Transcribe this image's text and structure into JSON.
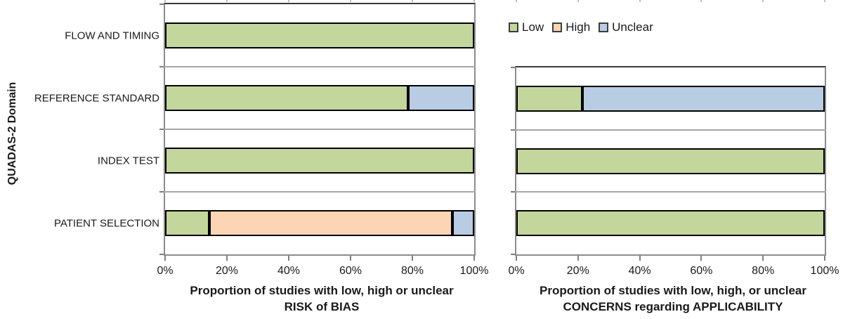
{
  "y_axis_title": "QUADAS-2 Domain",
  "legend": {
    "items": [
      {
        "label": "Low",
        "color": "#c3d69b"
      },
      {
        "label": "High",
        "color": "#fcd5b4"
      },
      {
        "label": "Unclear",
        "color": "#b8cce4"
      }
    ]
  },
  "chart_data": [
    {
      "type": "bar",
      "orientation": "horizontal",
      "stacked": true,
      "grid": true,
      "xlim": [
        0,
        100
      ],
      "xticks": [
        "0%",
        "20%",
        "40%",
        "60%",
        "80%",
        "100%"
      ],
      "xlabel_line1": "Proportion of studies with low, high or unclear",
      "xlabel_line2": "RISK of BIAS",
      "ylabel": "QUADAS-2 Domain",
      "categories": [
        "FLOW AND TIMING",
        "REFERENCE STANDARD",
        "INDEX TEST",
        "PATIENT SELECTION"
      ],
      "series": [
        {
          "name": "Low",
          "values": [
            100,
            78.6,
            100,
            14.3
          ]
        },
        {
          "name": "High",
          "values": [
            0,
            0,
            0,
            78.6
          ]
        },
        {
          "name": "Unclear",
          "values": [
            0,
            21.4,
            0,
            7.1
          ]
        }
      ]
    },
    {
      "type": "bar",
      "orientation": "horizontal",
      "stacked": true,
      "grid": true,
      "xlim": [
        0,
        100
      ],
      "xticks": [
        "0%",
        "20%",
        "40%",
        "60%",
        "80%",
        "100%"
      ],
      "xlabel_line1": "Proportion of studies with low, high, or unclear",
      "xlabel_line2": "CONCERNS regarding APPLICABILITY",
      "ylabel": "QUADAS-2 Domain",
      "categories": [
        "REFERENCE STANDARD",
        "INDEX TEST",
        "PATIENT SELECTION"
      ],
      "series": [
        {
          "name": "Low",
          "values": [
            21.4,
            100,
            100
          ]
        },
        {
          "name": "High",
          "values": [
            0,
            0,
            0
          ]
        },
        {
          "name": "Unclear",
          "values": [
            78.6,
            0,
            0
          ]
        }
      ]
    }
  ]
}
